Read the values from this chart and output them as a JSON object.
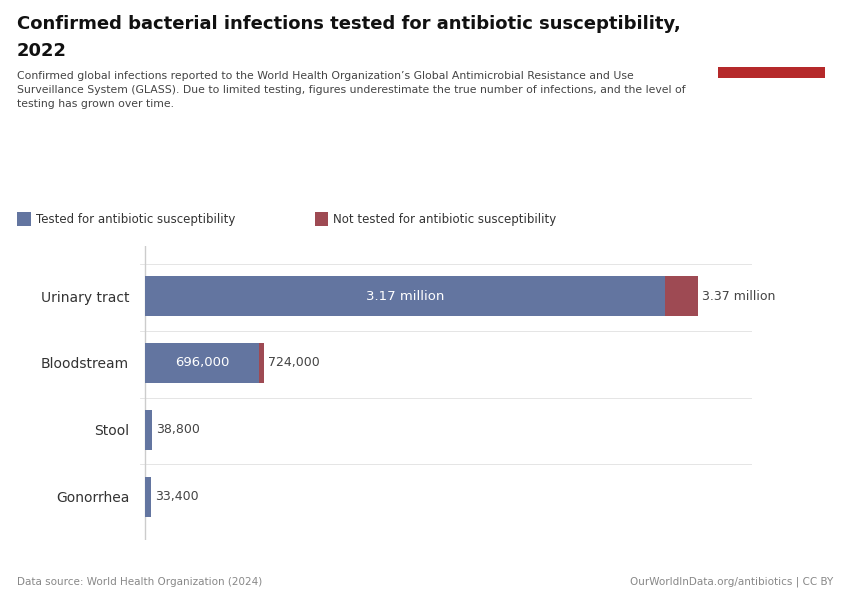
{
  "title_line1": "Confirmed bacterial infections tested for antibiotic susceptibility,",
  "title_line2": "2022",
  "subtitle": "Confirmed global infections reported to the World Health Organization’s Global Antimicrobial Resistance and Use\nSurveillance System (GLASS). Due to limited testing, figures underestimate the true number of infections, and the level of\ntesting has grown over time.",
  "categories": [
    "Urinary tract",
    "Bloodstream",
    "Stool",
    "Gonorrhea"
  ],
  "tested_values": [
    3170000,
    696000,
    38800,
    33400
  ],
  "not_tested_values": [
    200000,
    28000,
    3000,
    2000
  ],
  "total_labels": [
    "3.37 million",
    "724,000",
    null,
    null
  ],
  "tested_labels": [
    "3.17 million",
    "696,000",
    "38,800",
    "33,400"
  ],
  "color_tested": "#6375a0",
  "color_not_tested": "#9e4a53",
  "bg_color": "#ffffff",
  "legend_tested": "Tested for antibiotic susceptibility",
  "legend_not_tested": "Not tested for antibiotic susceptibility",
  "data_source": "Data source: World Health Organization (2024)",
  "logo_text": "OurWorldInData.org/antibiotics | CC BY",
  "owid_box_color": "#1a3a5c",
  "owid_red": "#b5292a",
  "separator_color": "#e0e0e0",
  "vline_color": "#cccccc",
  "label_color": "#444444",
  "title_color": "#111111",
  "footer_color": "#888888"
}
